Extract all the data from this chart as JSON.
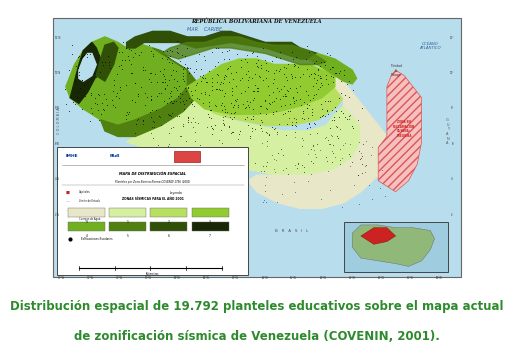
{
  "caption_line1": "Distribución espacial de 19.792 planteles educativos sobre el mapa actual",
  "caption_line2": "de zonificación sísmica de Venezuela (COVENIN, 2001).",
  "caption_color": "#2d8a2d",
  "caption_fontsize": 8.5,
  "fig_bg": "#ffffff",
  "map_frame_bg": "#ddeeff",
  "map_frame_color": "#888888",
  "sea_color": "#b8dded",
  "ocean_color": "#c5e5f0",
  "zone0_color": "#e8e8c8",
  "zone1_color": "#d4f0a0",
  "zone2_color": "#b8e060",
  "zone3_color": "#90cc30",
  "zone4_color": "#70b020",
  "zone5_color": "#508010",
  "zone6_color": "#305008",
  "zone7_color": "#182805",
  "llanos_color": "#d5e8c0",
  "guayana_color": "#c8ddb0",
  "hatch_bg": "#f5c0c0",
  "hatch_color": "#dd5555",
  "inset_sea": "#a0cce0",
  "inset_land": "#90b878",
  "inset_red": "#cc2222",
  "title_color": "#111111",
  "text_sea_color": "#336699",
  "label_color": "#333333",
  "logo_blue": "#003399",
  "logo_red": "#cc0000",
  "legend_bg": "#ffffff",
  "legend_border": "#444444"
}
